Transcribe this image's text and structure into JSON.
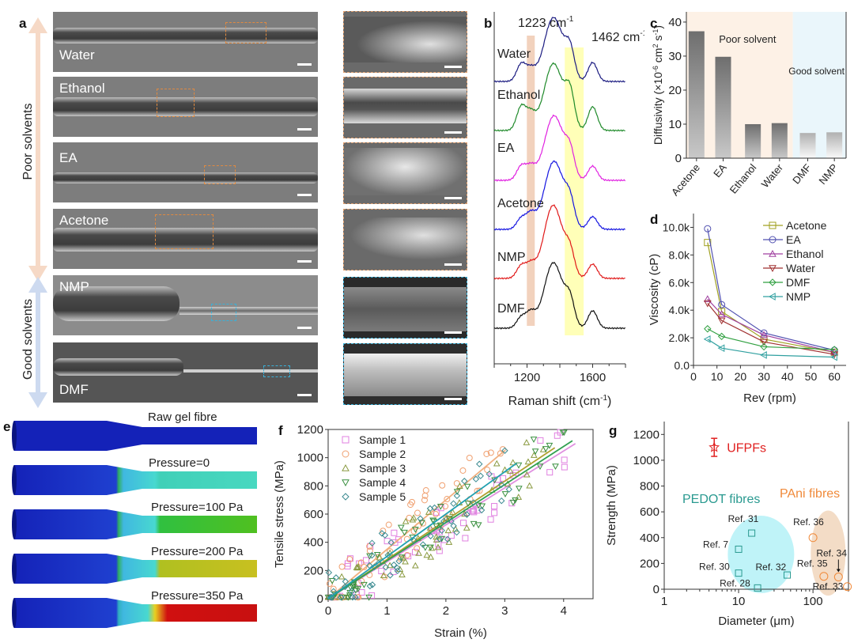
{
  "panel_labels": {
    "a": "a",
    "b": "b",
    "c": "c",
    "d": "d",
    "e": "e",
    "f": "f",
    "g": "g"
  },
  "panel_a": {
    "axis_poor": "Poor solvents",
    "axis_good": "Good solvents",
    "images": [
      {
        "label": "Water",
        "roi_color": "#e08a40"
      },
      {
        "label": "Ethanol",
        "roi_color": "#e08a40"
      },
      {
        "label": "EA",
        "roi_color": "#e08a40"
      },
      {
        "label": "Acetone",
        "roi_color": "#e08a40"
      },
      {
        "label": "NMP",
        "roi_color": "#3ab0d8"
      },
      {
        "label": "DMF",
        "roi_color": "#3ab0d8"
      }
    ],
    "arrow_colors": {
      "poor": "#f6d9c6",
      "good": "#cddaf0"
    }
  },
  "chart_data": [
    {
      "id": "b",
      "type": "line",
      "title": "",
      "xlabel": "Raman shift (cm-1)",
      "xlabel_main": "Raman shift (cm",
      "xlabel_sup": "-1",
      "xlabel_end": ")",
      "xlim": [
        1000,
        1800
      ],
      "xticks": [
        1200,
        1600
      ],
      "annotations": [
        {
          "text": "1223 cm",
          "sup": "-1",
          "x": 1223,
          "band_color": "#f2d2bd"
        },
        {
          "text": "1462 cm",
          "sup": "-1",
          "x": 1462,
          "band_range": [
            1430,
            1545
          ],
          "band_color": "#ffffb8"
        }
      ],
      "series": [
        {
          "name": "Water",
          "color": "#1a1a80"
        },
        {
          "name": "Ethanol",
          "color": "#1f8a2a"
        },
        {
          "name": "EA",
          "color": "#e020e0"
        },
        {
          "name": "Acetone",
          "color": "#1414e0"
        },
        {
          "name": "NMP",
          "color": "#e01818"
        },
        {
          "name": "DMF",
          "color": "#111111"
        }
      ],
      "peaks_note": "Peaks near 1165, 1223, 1370, 1462, 1600 cm-1"
    },
    {
      "id": "c",
      "type": "bar",
      "title": "",
      "xlabel": "",
      "ylabel": "Diffusivity (×10-6 cm2 s-1)",
      "ylim": [
        0,
        43
      ],
      "yticks": [
        0,
        10,
        20,
        30,
        40
      ],
      "categories": [
        "Acetone",
        "EA",
        "Ethanol",
        "Water",
        "DMF",
        "NMP"
      ],
      "values": [
        37.3,
        29.8,
        10.0,
        10.3,
        7.4,
        7.6
      ],
      "regions": [
        {
          "label": "Poor solvent",
          "categories": [
            "Acetone",
            "EA",
            "Ethanol",
            "Water"
          ],
          "color": "#fdf1e6"
        },
        {
          "label": "Good solvent",
          "categories": [
            "DMF",
            "NMP"
          ],
          "color": "#eaf6fb"
        }
      ]
    },
    {
      "id": "d",
      "type": "line",
      "xlabel": "Rev (rpm)",
      "ylabel": "Viscosity (cP)",
      "xlim": [
        0,
        65
      ],
      "ylim": [
        0,
        11000
      ],
      "xticks": [
        0,
        10,
        20,
        30,
        40,
        50,
        60
      ],
      "yticks": [
        0,
        2000,
        4000,
        6000,
        8000,
        10000
      ],
      "ytick_labels": [
        "0.0",
        "2.0k",
        "4.0k",
        "6.0k",
        "8.0k",
        "10.0k"
      ],
      "x": [
        6,
        12,
        30,
        60
      ],
      "legend_position": "top-right",
      "series": [
        {
          "name": "Acetone",
          "color": "#a0a020",
          "marker": "square",
          "values": [
            8900,
            3900,
            1900,
            950
          ]
        },
        {
          "name": "EA",
          "color": "#5050b0",
          "marker": "circle",
          "values": [
            9900,
            4400,
            2350,
            1100
          ]
        },
        {
          "name": "Ethanol",
          "color": "#a040a0",
          "marker": "triangle-up",
          "values": [
            4800,
            3700,
            2200,
            950
          ]
        },
        {
          "name": "Water",
          "color": "#a03030",
          "marker": "triangle-down",
          "values": [
            4500,
            3250,
            1700,
            800
          ]
        },
        {
          "name": "DMF",
          "color": "#30a040",
          "marker": "diamond",
          "values": [
            2650,
            2100,
            1350,
            1150
          ]
        },
        {
          "name": "NMP",
          "color": "#30a0a0",
          "marker": "triangle-left",
          "values": [
            1900,
            1250,
            750,
            600
          ]
        }
      ]
    },
    {
      "id": "f",
      "type": "scatter",
      "xlabel": "Strain (%)",
      "ylabel": "Tensile stress (MPa)",
      "xlim": [
        0,
        4.5
      ],
      "ylim": [
        0,
        1200
      ],
      "xticks": [
        0,
        1,
        2,
        3,
        4
      ],
      "yticks": [
        0,
        200,
        400,
        600,
        800,
        1000,
        1200
      ],
      "legend_position": "top-left",
      "series": [
        {
          "name": "Sample 1",
          "color": "#e080e0",
          "marker": "square",
          "fit": {
            "x_end": 4.2,
            "y_end": 1100
          },
          "x_max": 4.2
        },
        {
          "name": "Sample 2",
          "color": "#f0a070",
          "marker": "circle",
          "fit": {
            "x_end": 3.0,
            "y_end": 1050
          },
          "x_max": 3.05
        },
        {
          "name": "Sample 3",
          "color": "#8a9a40",
          "marker": "triangle-up",
          "fit": {
            "x_end": 3.85,
            "y_end": 1070
          },
          "x_max": 3.8
        },
        {
          "name": "Sample 4",
          "color": "#3a9040",
          "marker": "triangle-down",
          "fit": {
            "x_end": 4.15,
            "y_end": 1120
          },
          "x_max": 4.15
        },
        {
          "name": "Sample 5",
          "color": "#3a8a90",
          "marker": "diamond",
          "fit": {
            "x_end": 3.2,
            "y_end": 960
          },
          "x_max": 3.1
        }
      ],
      "fit_line_colors": [
        "#e090e0",
        "#f0b080",
        "#b0a030",
        "#30a050",
        "#20a0b0"
      ]
    },
    {
      "id": "g",
      "type": "scatter",
      "xlabel": "Diameter (μm)",
      "ylabel": "Strength (MPa)",
      "xscale": "log",
      "xlim": [
        1,
        300
      ],
      "ylim": [
        0,
        1300
      ],
      "xticks": [
        1,
        10,
        100
      ],
      "yticks": [
        0,
        200,
        400,
        600,
        800,
        1000,
        1200
      ],
      "groups": [
        {
          "label": "UFPFs",
          "color": "#e02020",
          "marker": "star",
          "points": [
            {
              "x": 4.7,
              "y": 1100,
              "err": [
                1030,
                1170
              ]
            }
          ]
        },
        {
          "label": "PEDOT fibres",
          "color": "#2a9a90",
          "marker": "square",
          "region_color": "#bff3f8",
          "points": [
            {
              "ref": "Ref. 31",
              "x": 15,
              "y": 435
            },
            {
              "ref": "Ref. 7",
              "x": 10,
              "y": 310
            },
            {
              "ref": "Ref. 30",
              "x": 10,
              "y": 125
            },
            {
              "ref": "Ref. 32",
              "x": 45,
              "y": 110
            },
            {
              "ref": "Ref. 28",
              "x": 18,
              "y": 10
            }
          ]
        },
        {
          "label": "PAni fibres",
          "color": "#f08a3a",
          "marker": "circle",
          "region_color": "#f3dcc6",
          "points": [
            {
              "ref": "Ref. 36",
              "x": 100,
              "y": 400
            },
            {
              "ref": "Ref. 35",
              "x": 140,
              "y": 100
            },
            {
              "ref": "Ref. 34",
              "x": 220,
              "y": 95
            },
            {
              "ref": "Ref. 33",
              "x": 290,
              "y": 20
            }
          ]
        }
      ]
    }
  ],
  "panel_e": {
    "rows": [
      {
        "label": "Raw gel fibre",
        "tip_color": "#1a2bc8"
      },
      {
        "label": "Pressure=0",
        "tip_color": "#40d8c0"
      },
      {
        "label": "Pressure=100 Pa",
        "tip_color": "#40c020"
      },
      {
        "label": "Pressure=200 Pa",
        "tip_color": "#c8c020"
      },
      {
        "label": "Pressure=350 Pa",
        "tip_color": "#d01010"
      }
    ]
  }
}
